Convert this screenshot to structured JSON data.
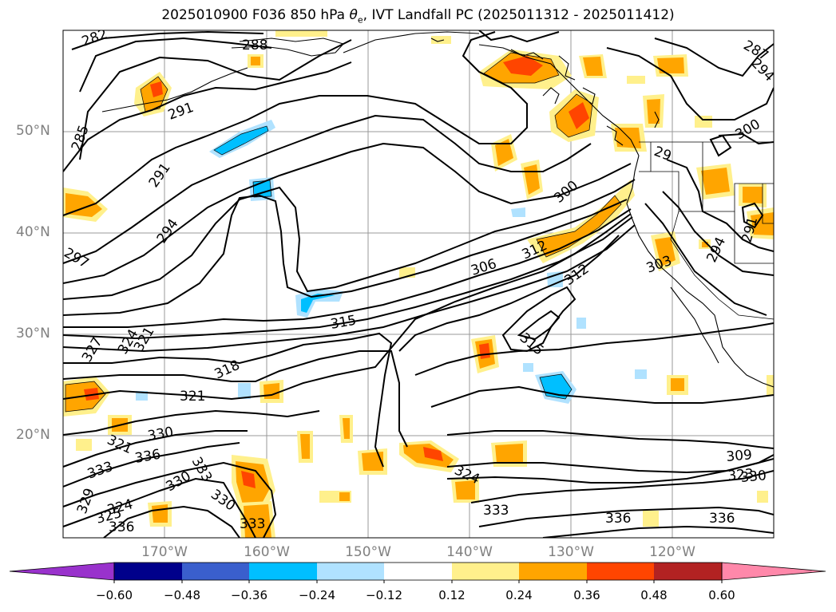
{
  "title": {
    "prefix": "2025010900 F036 850 hPa ",
    "theta": "θ",
    "theta_sub": "e",
    "suffix": ", IVT Landfall PC (2025011312 - 2025011412)"
  },
  "map": {
    "lat_labels": [
      "50°N",
      "40°N",
      "30°N",
      "20°N"
    ],
    "lon_labels": [
      "170°W",
      "160°W",
      "150°W",
      "140°W",
      "130°W",
      "120°W"
    ],
    "contour_labels": [
      "282",
      "288",
      "291",
      "285",
      "291",
      "294",
      "297",
      "287",
      "294",
      "300",
      "29",
      "300",
      "312",
      "306",
      "294",
      "291",
      "303",
      "312",
      "315",
      "315",
      "318",
      "321",
      "324",
      "321",
      "327",
      "321",
      "330",
      "336",
      "333",
      "333",
      "330",
      "330",
      "329",
      "324",
      "325",
      "336",
      "333",
      "324",
      "333",
      "336",
      "336",
      "309",
      "323",
      "330"
    ]
  },
  "colorbar": {
    "ticks": [
      "−0.60",
      "−0.48",
      "−0.36",
      "−0.24",
      "−0.12",
      "0.12",
      "0.24",
      "0.36",
      "0.48",
      "0.60"
    ],
    "colors": [
      "#9932cc",
      "#00008b",
      "#3a5fcd",
      "#00bfff",
      "#b0e2ff",
      "#ffffff",
      "#fff08c",
      "#ffa500",
      "#ff4500",
      "#b22222",
      "#ff88aa"
    ],
    "extend": "both"
  }
}
